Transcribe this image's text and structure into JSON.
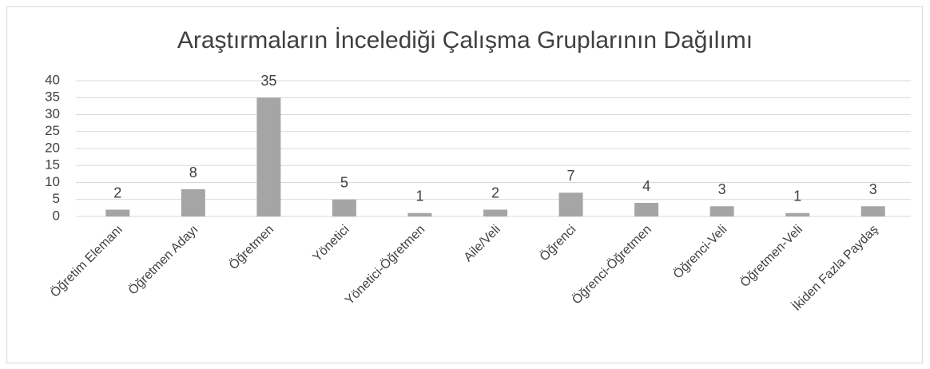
{
  "chart_data": {
    "type": "bar",
    "title": "Araştırmaların İncelediği Çalışma Gruplarının Dağılımı",
    "categories": [
      "Öğretim Elemanı",
      "Öğretmen Adayı",
      "Öğretmen",
      "Yönetici",
      "Yönetici-Öğretmen",
      "Aile/Veli",
      "Öğrenci",
      "Öğrenci-Öğretmen",
      "Öğrenci-Veli",
      "Öğretmen-Veli",
      "İkiden Fazla Paydaş"
    ],
    "values": [
      2,
      8,
      35,
      5,
      1,
      2,
      7,
      4,
      3,
      1,
      3
    ],
    "color": "#a5a5a5",
    "ylim": [
      0,
      40
    ],
    "yticks": [
      0,
      5,
      10,
      15,
      20,
      25,
      30,
      35,
      40
    ],
    "grid": true,
    "data_labels": true
  }
}
